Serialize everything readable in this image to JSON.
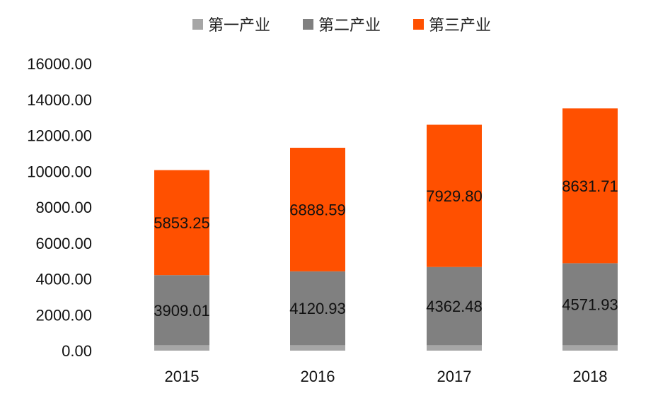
{
  "chart_data": {
    "type": "bar",
    "stacked": true,
    "categories": [
      "2015",
      "2016",
      "2017",
      "2018"
    ],
    "series": [
      {
        "name": "第一产业",
        "color": "#a6a6a6",
        "values": [
          300,
          300,
          300,
          300
        ],
        "labels": [
          "",
          "",
          "",
          ""
        ]
      },
      {
        "name": "第二产业",
        "color": "#808080",
        "values": [
          3909.01,
          4120.93,
          4362.48,
          4571.93
        ],
        "labels": [
          "3909.01",
          "4120.93",
          "4362.48",
          "4571.93"
        ]
      },
      {
        "name": "第三产业",
        "color": "#ff5000",
        "values": [
          5853.25,
          6888.59,
          7929.8,
          8631.71
        ],
        "labels": [
          "5853.25",
          "6888.59",
          "7929.80",
          "8631.71"
        ]
      }
    ],
    "ylim": [
      0,
      16000
    ],
    "yticks": [
      "0.00",
      "2000.00",
      "4000.00",
      "6000.00",
      "8000.00",
      "10000.00",
      "12000.00",
      "14000.00",
      "16000.00"
    ],
    "title": "",
    "xlabel": "",
    "ylabel": "",
    "legend_position": "top",
    "grid": false
  }
}
